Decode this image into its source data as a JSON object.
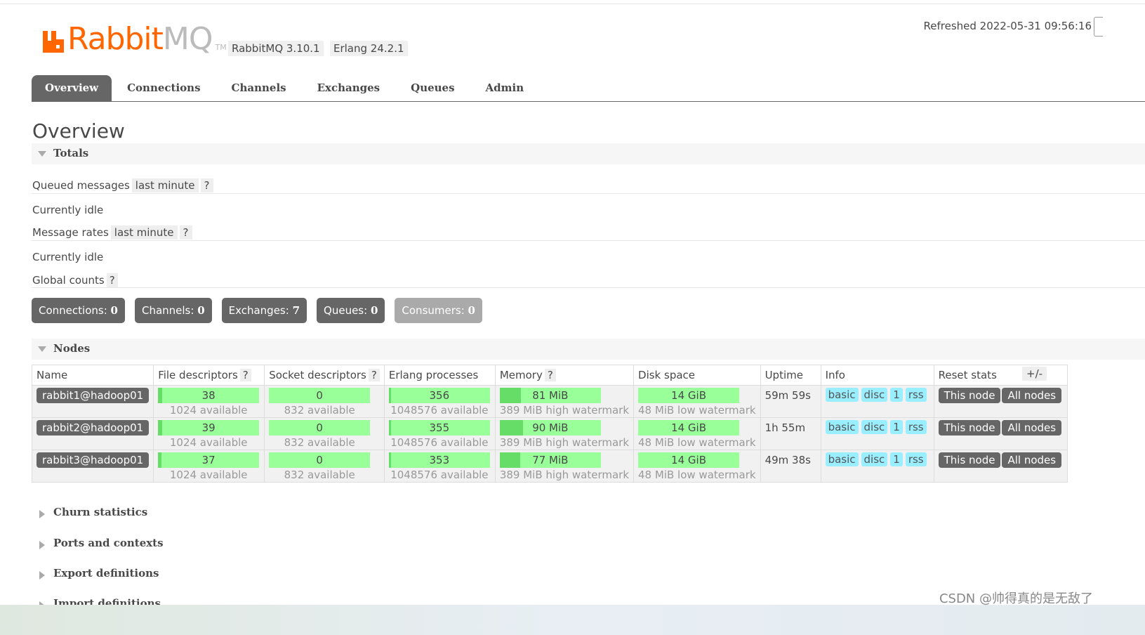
{
  "header": {
    "logo_text_rabbit": "Rabbit",
    "logo_text_mq": "MQ",
    "logo_tm": "TM",
    "version_rabbitmq": "RabbitMQ 3.10.1",
    "version_erlang": "Erlang 24.2.1",
    "refreshed": "Refreshed 2022-05-31 09:56:16"
  },
  "tabs": [
    "Overview",
    "Connections",
    "Channels",
    "Exchanges",
    "Queues",
    "Admin"
  ],
  "page_title": "Overview",
  "totals": {
    "heading": "Totals",
    "queued_messages_label": "Queued messages",
    "queued_messages_range": "last minute",
    "help": "?",
    "queued_status": "Currently idle",
    "message_rates_label": "Message rates",
    "message_rates_range": "last minute",
    "rates_status": "Currently idle",
    "global_counts_label": "Global counts"
  },
  "counts": [
    {
      "label": "Connections:",
      "value": "0"
    },
    {
      "label": "Channels:",
      "value": "0"
    },
    {
      "label": "Exchanges:",
      "value": "7"
    },
    {
      "label": "Queues:",
      "value": "0"
    },
    {
      "label": "Consumers:",
      "value": "0"
    }
  ],
  "nodes": {
    "heading": "Nodes",
    "columns": [
      "Name",
      "File descriptors",
      "Socket descriptors",
      "Erlang processes",
      "Memory",
      "Disk space",
      "Uptime",
      "Info",
      "Reset stats"
    ],
    "plus_minus": "+/-",
    "rows": [
      {
        "name": "rabbit1@hadoop01",
        "fd": "38",
        "fd_avail": "1024 available",
        "fd_fraction": 0.037,
        "sd": "0",
        "sd_avail": "832 available",
        "sd_fraction": 0,
        "ep": "356",
        "ep_avail": "1048576 available",
        "ep_fraction": 0.0003,
        "mem": "81 MiB",
        "mem_wm": "389 MiB high watermark",
        "mem_fraction": 0.21,
        "disk": "14 GiB",
        "disk_wm": "48 MiB low watermark",
        "uptime": "59m 59s",
        "info": [
          "basic",
          "disc",
          "1",
          "rss"
        ],
        "reset": [
          "This node",
          "All nodes"
        ]
      },
      {
        "name": "rabbit2@hadoop01",
        "fd": "39",
        "fd_avail": "1024 available",
        "fd_fraction": 0.038,
        "sd": "0",
        "sd_avail": "832 available",
        "sd_fraction": 0,
        "ep": "355",
        "ep_avail": "1048576 available",
        "ep_fraction": 0.0003,
        "mem": "90 MiB",
        "mem_wm": "389 MiB high watermark",
        "mem_fraction": 0.23,
        "disk": "14 GiB",
        "disk_wm": "48 MiB low watermark",
        "uptime": "1h 55m",
        "info": [
          "basic",
          "disc",
          "1",
          "rss"
        ],
        "reset": [
          "This node",
          "All nodes"
        ]
      },
      {
        "name": "rabbit3@hadoop01",
        "fd": "37",
        "fd_avail": "1024 available",
        "fd_fraction": 0.036,
        "sd": "0",
        "sd_avail": "832 available",
        "sd_fraction": 0,
        "ep": "353",
        "ep_avail": "1048576 available",
        "ep_fraction": 0.0003,
        "mem": "77 MiB",
        "mem_wm": "389 MiB high watermark",
        "mem_fraction": 0.2,
        "disk": "14 GiB",
        "disk_wm": "48 MiB low watermark",
        "uptime": "49m 38s",
        "info": [
          "basic",
          "disc",
          "1",
          "rss"
        ],
        "reset": [
          "This node",
          "All nodes"
        ]
      }
    ]
  },
  "sections": [
    "Churn statistics",
    "Ports and contexts",
    "Export definitions",
    "Import definitions"
  ],
  "watermark": "CSDN @帅得真的是无敌了",
  "colors": {
    "accent": "#ff6600",
    "tab_active": "#666666",
    "bar": "#99ff99",
    "bar_fill": "#66dd66",
    "tag": "#99eeff"
  }
}
